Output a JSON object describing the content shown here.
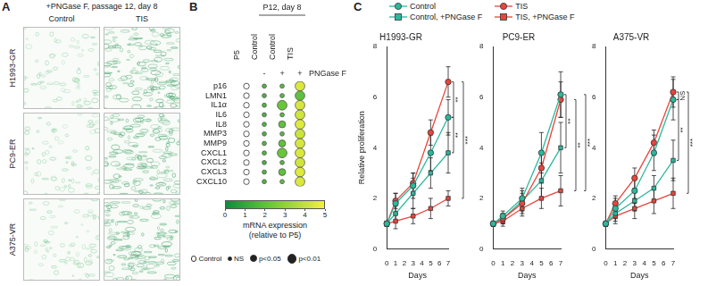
{
  "panel_a": {
    "label": "A",
    "title": "+PNGase F, passage 12, day 8",
    "columns": [
      "Control",
      "TIS"
    ],
    "rows": [
      "H1993-GR",
      "PC9-ER",
      "A375-VR"
    ]
  },
  "chart_data": [
    {
      "type": "dot",
      "panel": "B",
      "categories": [
        "P5",
        "Control",
        "Control",
        "TIS"
      ],
      "category_groups": [
        null,
        "P12, day 8",
        "P12, day 8",
        "P12, day 8"
      ],
      "treatment": {
        "label": "PNGase F",
        "values": [
          null,
          "-",
          "+",
          "+"
        ]
      },
      "rows": [
        "p16",
        "LMN1",
        "IL1α",
        "IL6",
        "IL8",
        "MMP3",
        "MMP9",
        "CXCL1",
        "CXCL2",
        "CXCL3",
        "CXCL10"
      ],
      "values": [
        [
          null,
          1.6,
          1.8,
          4.5
        ],
        [
          null,
          1.5,
          1.8,
          2.0
        ],
        [
          null,
          1.6,
          2.2,
          4.4
        ],
        [
          null,
          1.5,
          1.8,
          4.3
        ],
        [
          null,
          1.6,
          2.0,
          4.6
        ],
        [
          null,
          1.5,
          1.8,
          4.2
        ],
        [
          null,
          1.6,
          2.0,
          4.4
        ],
        [
          null,
          1.6,
          2.2,
          4.5
        ],
        [
          null,
          1.5,
          1.8,
          4.3
        ],
        [
          null,
          1.6,
          2.0,
          4.6
        ],
        [
          null,
          1.6,
          1.9,
          4.5
        ]
      ],
      "significance": [
        [
          "Control",
          "NS",
          "NS",
          "p<0.01"
        ],
        [
          "Control",
          "NS",
          "NS",
          "p<0.01"
        ],
        [
          "Control",
          "NS",
          "p<0.01",
          "p<0.01"
        ],
        [
          "Control",
          "NS",
          "NS",
          "p<0.01"
        ],
        [
          "Control",
          "NS",
          "p<0.05",
          "p<0.01"
        ],
        [
          "Control",
          "NS",
          "NS",
          "p<0.01"
        ],
        [
          "Control",
          "NS",
          "p<0.05",
          "p<0.01"
        ],
        [
          "Control",
          "NS",
          "p<0.01",
          "p<0.01"
        ],
        [
          "Control",
          "NS",
          "NS",
          "p<0.01"
        ],
        [
          "Control",
          "NS",
          "p<0.05",
          "p<0.01"
        ],
        [
          "Control",
          "NS",
          "NS",
          "p<0.01"
        ]
      ],
      "significance_levels": [
        "Control",
        "NS",
        "p<0.05",
        "p<0.01"
      ],
      "colorbar": {
        "title": "mRNA expression",
        "subtitle": "(relative to P5)",
        "range": [
          0,
          5
        ],
        "ticks": [
          0,
          1,
          2,
          3,
          4,
          5
        ]
      },
      "grid": false
    },
    {
      "type": "line",
      "panel": "C",
      "title": "H1993-GR",
      "x_label": "Days",
      "y_label": "Relative proliferation",
      "x": [
        0,
        1,
        3,
        5,
        7
      ],
      "xlim": [
        0,
        7
      ],
      "xticks": [
        0,
        1,
        2,
        3,
        4,
        5,
        6,
        7
      ],
      "ylim": [
        0,
        8
      ],
      "yticks": [
        0,
        2,
        4,
        6,
        8
      ],
      "grid": false,
      "legend": "top",
      "series": [
        {
          "name": "Control",
          "color": "#2bb89c",
          "marker": "circle",
          "values": [
            1,
            1.8,
            2.5,
            3.8,
            5.2
          ],
          "errors": [
            0.1,
            0.4,
            0.5,
            0.7,
            0.7
          ]
        },
        {
          "name": "TIS",
          "color": "#e8453c",
          "marker": "circle",
          "values": [
            1,
            1.9,
            2.6,
            4.6,
            6.6
          ],
          "errors": [
            0.1,
            0.3,
            0.4,
            0.5,
            0.6
          ]
        },
        {
          "name": "Control, +PNGase F",
          "color": "#2bb89c",
          "marker": "square",
          "values": [
            1,
            1.4,
            2.2,
            3.0,
            3.8
          ],
          "errors": [
            0.1,
            0.3,
            0.6,
            0.6,
            0.8
          ]
        },
        {
          "name": "TIS, +PNGase F",
          "color": "#e8453c",
          "marker": "square",
          "values": [
            1,
            1.1,
            1.3,
            1.6,
            2.0
          ],
          "errors": [
            0.1,
            0.3,
            0.3,
            0.4,
            0.3
          ]
        }
      ],
      "annotations": [
        {
          "text": "**",
          "series": [
            "TIS",
            "Control"
          ]
        },
        {
          "text": "**",
          "series": [
            "Control",
            "Control, +PNGase F"
          ]
        },
        {
          "text": "***",
          "series": [
            "TIS",
            "TIS, +PNGase F"
          ]
        }
      ]
    },
    {
      "type": "line",
      "title": "PC9-ER",
      "x_label": "Days",
      "x": [
        0,
        1,
        3,
        5,
        7
      ],
      "xlim": [
        0,
        7
      ],
      "xticks": [
        0,
        1,
        2,
        3,
        4,
        5,
        6,
        7
      ],
      "ylim": [
        0,
        8
      ],
      "yticks": [
        0,
        2,
        4,
        6,
        8
      ],
      "grid": false,
      "series": [
        {
          "name": "Control",
          "color": "#2bb89c",
          "marker": "circle",
          "values": [
            1,
            1.3,
            2.0,
            3.8,
            6.1
          ],
          "errors": [
            0.1,
            0.2,
            0.4,
            0.8,
            0.9
          ]
        },
        {
          "name": "TIS",
          "color": "#e8453c",
          "marker": "circle",
          "values": [
            1,
            1.2,
            1.8,
            3.2,
            5.9
          ],
          "errors": [
            0.1,
            0.2,
            0.4,
            0.6,
            0.7
          ]
        },
        {
          "name": "Control, +PNGase F",
          "color": "#2bb89c",
          "marker": "square",
          "values": [
            1,
            1.2,
            1.9,
            2.7,
            4.0
          ],
          "errors": [
            0.1,
            0.2,
            0.4,
            0.7,
            1.0
          ]
        },
        {
          "name": "TIS, +PNGase F",
          "color": "#e8453c",
          "marker": "square",
          "values": [
            1,
            1.1,
            1.6,
            2.0,
            2.3
          ],
          "errors": [
            0.1,
            0.2,
            0.3,
            0.4,
            0.6
          ]
        }
      ],
      "annotations": [
        {
          "text": "**",
          "series": [
            "Control",
            "Control, +PNGase F"
          ]
        },
        {
          "text": "**",
          "series": [
            "TIS",
            "TIS, +PNGase F"
          ]
        },
        {
          "text": "***",
          "series": [
            "Control",
            "TIS, +PNGase F"
          ]
        }
      ]
    },
    {
      "type": "line",
      "title": "A375-VR",
      "x_label": "Days",
      "x": [
        0,
        1,
        3,
        5,
        7
      ],
      "xlim": [
        0,
        7
      ],
      "xticks": [
        0,
        1,
        2,
        3,
        4,
        5,
        6,
        7
      ],
      "ylim": [
        0,
        8
      ],
      "yticks": [
        0,
        2,
        4,
        6,
        8
      ],
      "grid": false,
      "series": [
        {
          "name": "Control",
          "color": "#2bb89c",
          "marker": "circle",
          "values": [
            1,
            1.6,
            2.3,
            3.8,
            5.9
          ],
          "errors": [
            0.1,
            0.4,
            0.5,
            0.7,
            0.8
          ]
        },
        {
          "name": "TIS",
          "color": "#e8453c",
          "marker": "circle",
          "values": [
            1,
            1.8,
            2.8,
            4.2,
            6.2
          ],
          "errors": [
            0.1,
            0.3,
            0.4,
            0.5,
            0.6
          ]
        },
        {
          "name": "Control, +PNGase F",
          "color": "#2bb89c",
          "marker": "square",
          "values": [
            1,
            1.4,
            1.9,
            2.4,
            3.5
          ],
          "errors": [
            0.1,
            0.3,
            0.4,
            0.5,
            0.8
          ]
        },
        {
          "name": "TIS, +PNGase F",
          "color": "#e8453c",
          "marker": "square",
          "values": [
            1,
            1.3,
            1.6,
            1.9,
            2.2
          ],
          "errors": [
            0.1,
            0.3,
            0.4,
            0.5,
            0.6
          ]
        }
      ],
      "annotations": [
        {
          "text": "NS",
          "series": [
            "TIS",
            "Control"
          ]
        },
        {
          "text": "**",
          "series": [
            "Control",
            "Control, +PNGase F"
          ]
        },
        {
          "text": "***",
          "series": [
            "TIS",
            "TIS, +PNGase F"
          ]
        }
      ]
    }
  ]
}
